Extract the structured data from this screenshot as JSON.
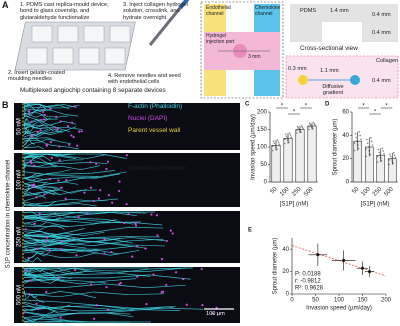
{
  "figure": {
    "panel_a": {
      "label": "A",
      "steps": [
        "1. PDMS cast replica-mould device, bond to glass coverslip, and glutaraldehyde functionalize",
        "2. Insert gelatin-coated moulding needles",
        "3. Inject collagen hydrogel solution, crosslink, and hydrate overnight",
        "4. Remove needles and seed with endothelial cells"
      ],
      "caption": "Multiplexed angiochip containing 8 separate devices",
      "schematic": {
        "endothelial": "Endothelial channel",
        "chemokine": "Chemokine channel",
        "port": "Hydrogel injection port",
        "length": "3 mm"
      },
      "cross_section": {
        "pdms": "PDMS",
        "width": "1.4 mm",
        "dims": [
          "0.4 mm",
          "0.4 mm"
        ],
        "title": "Cross-sectional view",
        "collagen": "Collagen",
        "gap": "1.1 mm",
        "height": "0.3 mm",
        "depth": "0.4 mm",
        "gradient": "Diffusive gradient"
      }
    },
    "panel_b": {
      "label": "B",
      "legend": [
        "F-actin (Phalloidin)",
        "Nuclei (DAPI)",
        "Parent vessel wall"
      ],
      "legend_colors": [
        "#3fd8e8",
        "#d04adf",
        "#e8d43a"
      ],
      "direction": "Direction of invasion",
      "rows": [
        "50 nM",
        "100 nM",
        "250 nM",
        "500 nM"
      ],
      "axis_title": "S1P concentration in chemokine channel",
      "scale": "100 µm"
    }
  },
  "chart_data": [
    {
      "type": "bar",
      "panel": "C",
      "ylabel": "Invasion speed (µm/day)",
      "xlabel": "[S1P] (nM)",
      "categories": [
        "50",
        "100",
        "250",
        "500"
      ],
      "values": [
        105,
        125,
        150,
        160
      ],
      "errors": [
        15,
        15,
        10,
        10
      ],
      "color": "#eeeeee",
      "ylim": [
        0,
        200
      ],
      "yticks": [
        0,
        50,
        100,
        150,
        200
      ],
      "annotations": [
        "*",
        "*",
        "*"
      ]
    },
    {
      "type": "bar",
      "panel": "D",
      "ylabel": "Sprout diameter (µm)",
      "xlabel": "[S1P] (nM)",
      "categories": [
        "50",
        "100",
        "250",
        "500"
      ],
      "values": [
        35,
        30,
        23,
        20
      ],
      "errors": [
        8,
        8,
        6,
        5
      ],
      "color": "#eeeeee",
      "ylim": [
        0,
        60
      ],
      "yticks": [
        0,
        20,
        40,
        60
      ],
      "annotations": [
        "*",
        "*",
        "*"
      ]
    },
    {
      "type": "scatter",
      "panel": "E",
      "ylabel": "Sprout diameter (µm)",
      "xlabel": "Invasion speed (µm/day)",
      "x": [
        55,
        110,
        150,
        165
      ],
      "values": [
        35,
        30,
        23,
        20
      ],
      "x_errors": [
        20,
        25,
        12,
        10
      ],
      "errors": [
        10,
        9,
        6,
        5
      ],
      "color": "#111111",
      "fit_color": "#e0403a",
      "xlim": [
        0,
        200
      ],
      "xticks": [
        0,
        50,
        100,
        150,
        200
      ],
      "ylim": [
        0,
        50
      ],
      "yticks": [
        0,
        20,
        40
      ],
      "stats": [
        "P: 0.0188",
        "r: -0.9812",
        "R²: 0.9628"
      ]
    }
  ]
}
